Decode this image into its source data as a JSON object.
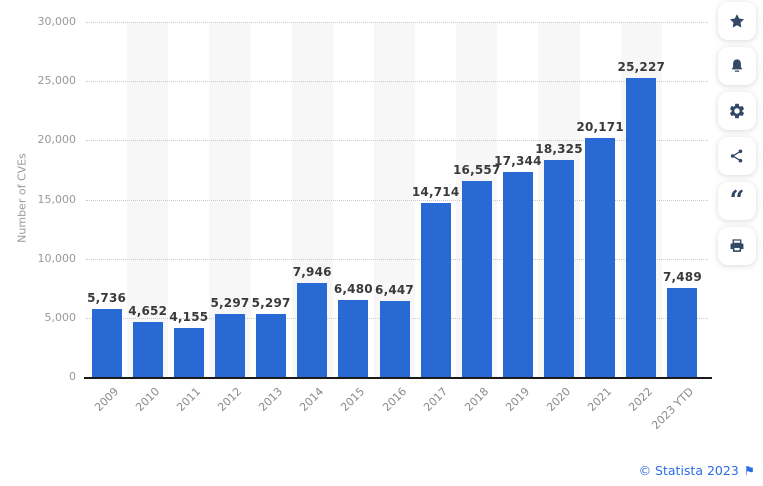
{
  "chart_data": {
    "type": "bar",
    "title": "",
    "ylabel": "Number of CVEs",
    "categories": [
      "2009",
      "2010",
      "2011",
      "2012",
      "2013",
      "2014",
      "2015",
      "2016",
      "2017",
      "2018",
      "2019",
      "2020",
      "2021",
      "2022",
      "2023 YTD"
    ],
    "values": [
      5736,
      4652,
      4155,
      5297,
      5297,
      7946,
      6480,
      6447,
      14714,
      16557,
      17344,
      18325,
      20171,
      25227,
      7489
    ],
    "value_labels": [
      "5,736",
      "4,652",
      "4,155",
      "5,297",
      "5,297",
      "7,946",
      "6,480",
      "6,447",
      "14,714",
      "16,557",
      "17,344",
      "18,325",
      "20,171",
      "25,227",
      "7,489"
    ],
    "ylim": [
      0,
      30000
    ],
    "yticks": [
      {
        "value": 0,
        "label": "0"
      },
      {
        "value": 5000,
        "label": "5,000"
      },
      {
        "value": 10000,
        "label": "10,000"
      },
      {
        "value": 15000,
        "label": "15,000"
      },
      {
        "value": 20000,
        "label": "20,000"
      },
      {
        "value": 25000,
        "label": "25,000"
      },
      {
        "value": 30000,
        "label": "30,000"
      }
    ],
    "grid": "horizontal-dotted",
    "legend": "none",
    "bar_color": "#2869d4",
    "band_color": "#f7f7f8",
    "value_label_color": "#3a3a3a",
    "tick_label_color": "#999999",
    "axis_color": "#1b1b1b"
  },
  "sidebar": {
    "icon_color": "#334766",
    "quote_glyph": "“",
    "buttons": [
      {
        "id": "favorite",
        "icon": "star-icon"
      },
      {
        "id": "alert",
        "icon": "bell-icon"
      },
      {
        "id": "settings",
        "icon": "gear-icon"
      },
      {
        "id": "share",
        "icon": "share-icon"
      },
      {
        "id": "cite",
        "icon": "quote-icon"
      },
      {
        "id": "print",
        "icon": "printer-icon"
      }
    ]
  },
  "footer": {
    "copyright": "© Statista 2023",
    "flag_icon": "⚑",
    "link_color": "#2b6ce2"
  }
}
